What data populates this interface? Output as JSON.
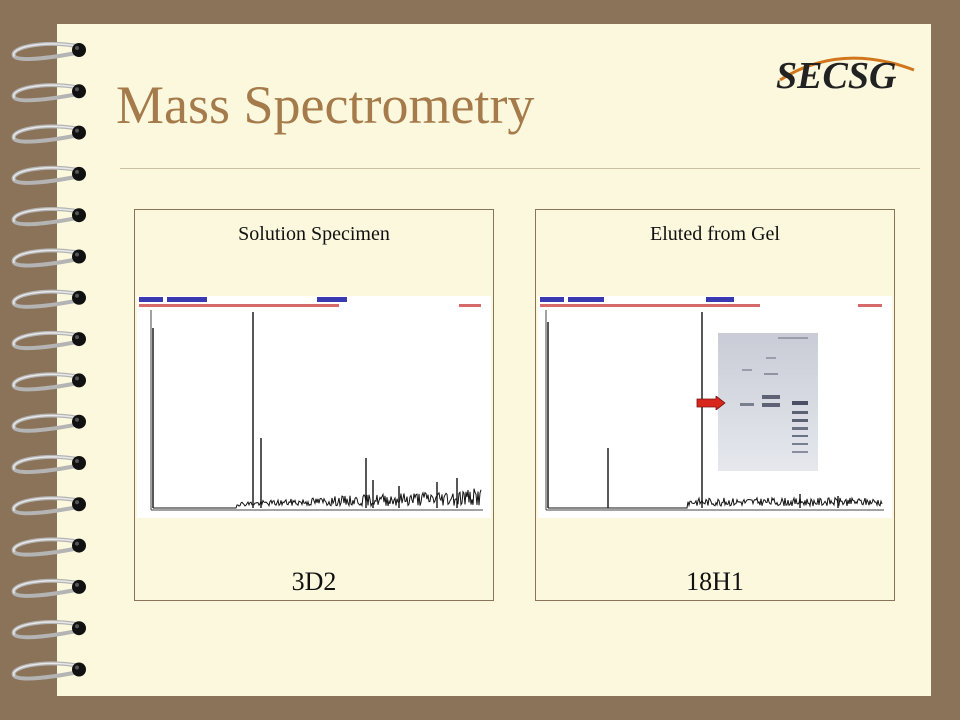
{
  "slide": {
    "title": "Mass Spectrometry",
    "logo_text": "SECSG"
  },
  "panels": [
    {
      "caption": "Solution Specimen",
      "sample_id": "3D2"
    },
    {
      "caption": "Eluted from Gel",
      "sample_id": "18H1"
    }
  ],
  "colors": {
    "background": "#8b735a",
    "page": "#fbf8dd",
    "title": "#a67b4b",
    "logo_dark": "#222222",
    "logo_accent": "#d2761e",
    "arrow": "#d9261c"
  },
  "icons": {
    "binder": "binder-rings-icon",
    "arrow": "arrow-right-icon"
  }
}
